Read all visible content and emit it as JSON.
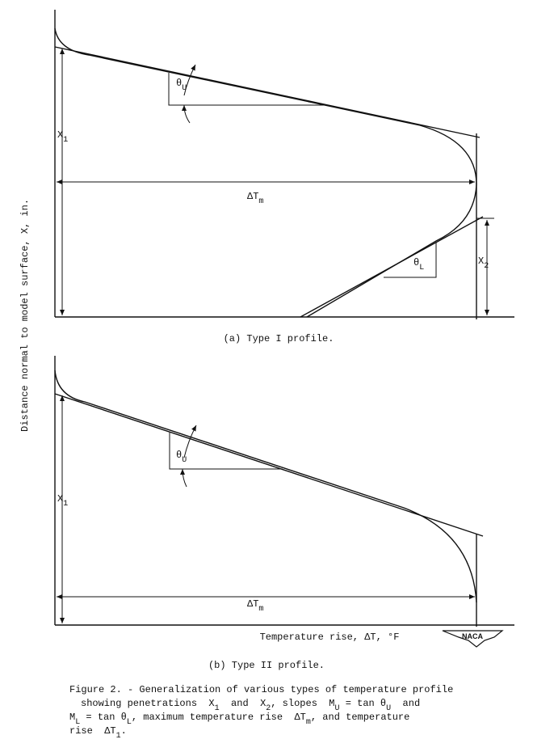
{
  "y_axis_label": "Distance normal to model surface, X, in.",
  "panel_a": {
    "theta_u": [
      "θ",
      "U"
    ],
    "x1": [
      "X",
      "1"
    ],
    "delta_tm": [
      "ΔT",
      "m"
    ],
    "theta_l": [
      "θ",
      "L"
    ],
    "x2": [
      "X",
      "2"
    ],
    "caption": "(a) Type I profile."
  },
  "panel_b": {
    "theta_u": [
      "θ",
      "U"
    ],
    "x1": [
      "X",
      "1"
    ],
    "delta_tm": [
      "ΔT",
      "m"
    ],
    "caption": "(b) Type II profile."
  },
  "x_axis_label": "Temperature rise, ΔT, °F",
  "logo": "NACA",
  "figure_caption": [
    [
      "Figure 2. - Generalization of various types of temperature profile"
    ],
    [
      "showing penetrations  X",
      "1",
      "  and  X",
      "2",
      ", slopes  M",
      "U",
      " = tan θ",
      "U",
      "  and"
    ],
    [
      "M",
      "L",
      " = tan θ",
      "L",
      ", maximum temperature rise  ΔT",
      "m",
      ", and temperature"
    ],
    [
      "rise  ΔT",
      "1",
      "."
    ]
  ]
}
